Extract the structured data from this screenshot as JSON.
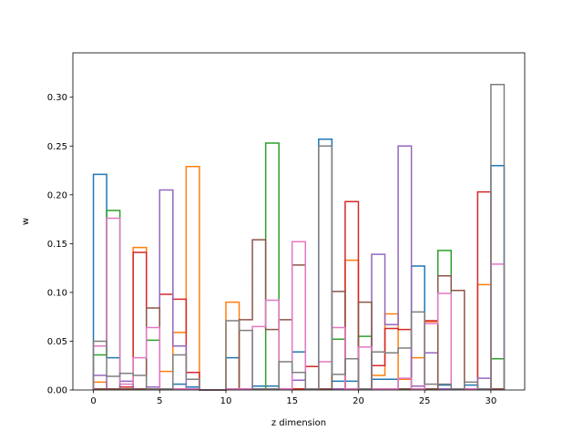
{
  "chart_data": {
    "type": "histogram-step",
    "xlabel": "z dimension",
    "ylabel": "w",
    "xlim": [
      -1.55,
      32.55
    ],
    "ylim": [
      0,
      0.3455
    ],
    "xticks": [
      0,
      5,
      10,
      15,
      20,
      25,
      30
    ],
    "yticks": [
      0.0,
      0.05,
      0.1,
      0.15,
      0.2,
      0.25,
      0.3
    ],
    "ytick_labels": [
      "0.00",
      "0.05",
      "0.10",
      "0.15",
      "0.20",
      "0.25",
      "0.30"
    ],
    "bin_edges_start": 0,
    "bin_width": 1,
    "series": [
      {
        "color": "#1f77b4",
        "values": [
          0.221,
          0.033,
          0.003,
          0.001,
          0.003,
          0.001,
          0.006,
          0.003,
          0,
          0,
          0.033,
          0.001,
          0.004,
          0.004,
          0.001,
          0.039,
          0.001,
          0.257,
          0.009,
          0.009,
          0.001,
          0.011,
          0.011,
          0.001,
          0.127,
          0.001,
          0.005,
          0.001,
          0.005,
          0.001,
          0.23
        ]
      },
      {
        "color": "#ff7f0e",
        "values": [
          0.008,
          0.001,
          0.003,
          0.146,
          0.001,
          0.019,
          0.059,
          0.229,
          0,
          0,
          0.09,
          0.001,
          0.001,
          0.001,
          0.001,
          0.001,
          0.001,
          0.001,
          0.001,
          0.133,
          0.001,
          0.015,
          0.078,
          0.011,
          0.033,
          0.07,
          0.001,
          0.001,
          0.001,
          0.108,
          0.001
        ]
      },
      {
        "color": "#2ca02c",
        "values": [
          0.036,
          0.184,
          0.001,
          0.001,
          0.051,
          0.001,
          0.001,
          0.001,
          0,
          0,
          0.001,
          0.001,
          0.001,
          0.253,
          0.001,
          0.001,
          0.001,
          0.001,
          0.052,
          0.001,
          0.055,
          0.001,
          0.001,
          0.001,
          0.001,
          0.001,
          0.143,
          0.001,
          0.001,
          0.001,
          0.032
        ]
      },
      {
        "color": "#d62728",
        "values": [
          0.001,
          0.001,
          0.003,
          0.141,
          0.001,
          0.098,
          0.093,
          0.018,
          0,
          0,
          0.001,
          0.001,
          0.001,
          0.001,
          0.001,
          0.001,
          0.024,
          0.001,
          0.001,
          0.193,
          0.001,
          0.025,
          0.063,
          0.062,
          0.001,
          0.071,
          0.001,
          0.001,
          0.001,
          0.203,
          0.001
        ]
      },
      {
        "color": "#9467bd",
        "values": [
          0.015,
          0.001,
          0.009,
          0.001,
          0.003,
          0.205,
          0.045,
          0.001,
          0,
          0,
          0.001,
          0.001,
          0.001,
          0.001,
          0.001,
          0.01,
          0.001,
          0.001,
          0.001,
          0.001,
          0.001,
          0.139,
          0.067,
          0.25,
          0.004,
          0.038,
          0.001,
          0.001,
          0.001,
          0.012,
          0.001
        ]
      },
      {
        "color": "#8c564b",
        "values": [
          0.001,
          0.001,
          0.001,
          0.001,
          0.084,
          0.001,
          0.001,
          0.001,
          0,
          0,
          0.001,
          0.072,
          0.154,
          0.062,
          0.072,
          0.128,
          0.001,
          0.001,
          0.101,
          0.001,
          0.09,
          0.001,
          0.001,
          0.001,
          0.001,
          0.001,
          0.117,
          0.102,
          0.001,
          0.001,
          0.001
        ]
      },
      {
        "color": "#e377c2",
        "values": [
          0.045,
          0.176,
          0.006,
          0.033,
          0.064,
          0.001,
          0.001,
          0.001,
          0,
          0,
          0.001,
          0.001,
          0.065,
          0.092,
          0.001,
          0.152,
          0.001,
          0.029,
          0.064,
          0.001,
          0.044,
          0.001,
          0.001,
          0.012,
          0.001,
          0.068,
          0.099,
          0.001,
          0.001,
          0.001,
          0.129
        ]
      },
      {
        "color": "#7f7f7f",
        "values": [
          0.05,
          0.014,
          0.017,
          0.015,
          0.001,
          0.001,
          0.036,
          0.011,
          0,
          0,
          0.071,
          0.061,
          0.001,
          0.001,
          0.029,
          0.018,
          0.001,
          0.25,
          0.016,
          0.032,
          0.001,
          0.039,
          0.038,
          0.043,
          0.08,
          0.006,
          0.006,
          0.001,
          0.008,
          0.001,
          0.313
        ]
      }
    ]
  }
}
